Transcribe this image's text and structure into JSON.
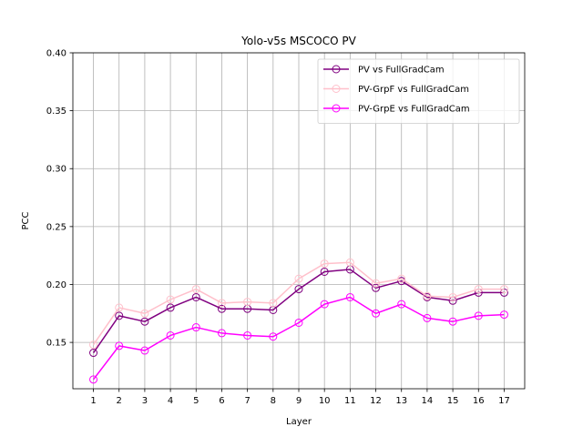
{
  "chart_data": {
    "type": "line",
    "title": "Yolo-v5s MSCOCO PV",
    "xlabel": "Layer",
    "ylabel": "PCC",
    "x": [
      1,
      2,
      3,
      4,
      5,
      6,
      7,
      8,
      9,
      10,
      11,
      12,
      13,
      14,
      15,
      16,
      17
    ],
    "ylim": [
      0.11,
      0.4
    ],
    "xlim": [
      0.2,
      17.8
    ],
    "yticks": [
      "0.15",
      "0.20",
      "0.25",
      "0.30",
      "0.35",
      "0.40"
    ],
    "grid": true,
    "legend_position": "top-right",
    "series": [
      {
        "name": "PV vs FullGradCam",
        "color": "#800080",
        "marker": "open-circle",
        "values": [
          0.141,
          0.173,
          0.168,
          0.18,
          0.189,
          0.179,
          0.179,
          0.178,
          0.196,
          0.211,
          0.213,
          0.197,
          0.203,
          0.189,
          0.186,
          0.193,
          0.193
        ]
      },
      {
        "name": "PV-GrpF vs FullGradCam",
        "color": "#ffc0cb",
        "marker": "open-circle",
        "values": [
          0.148,
          0.18,
          0.175,
          0.187,
          0.196,
          0.184,
          0.185,
          0.184,
          0.205,
          0.218,
          0.219,
          0.201,
          0.205,
          0.19,
          0.189,
          0.196,
          0.196
        ]
      },
      {
        "name": "PV-GrpE vs FullGradCam",
        "color": "#ff00ff",
        "marker": "open-circle",
        "values": [
          0.118,
          0.147,
          0.143,
          0.156,
          0.163,
          0.158,
          0.156,
          0.155,
          0.167,
          0.183,
          0.189,
          0.175,
          0.183,
          0.171,
          0.168,
          0.173,
          0.174
        ]
      }
    ]
  }
}
